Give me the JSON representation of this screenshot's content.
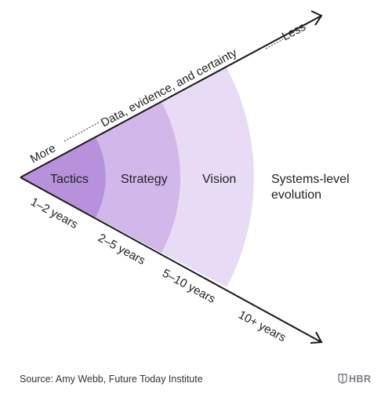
{
  "zones": [
    {
      "label": "Tactics",
      "time": "1–2 years",
      "color": "#b791db"
    },
    {
      "label": "Strategy",
      "time": "2–5 years",
      "color": "#d1b7ea"
    },
    {
      "label": "Vision",
      "time": "5–10 years",
      "color": "#e8dbf6"
    },
    {
      "label_line1": "Systems-level",
      "label_line2": "evolution",
      "time": "10+ years"
    }
  ],
  "top_axis": {
    "start_label": "More",
    "middle_label": "Data, evidence, and certainty",
    "end_label": "Less"
  },
  "source": "Source: Amy Webb, Future Today Institute",
  "brand": "HBR",
  "colors": {
    "line": "#1a1a1a",
    "text": "#222222",
    "brand": "#7a7f86"
  }
}
